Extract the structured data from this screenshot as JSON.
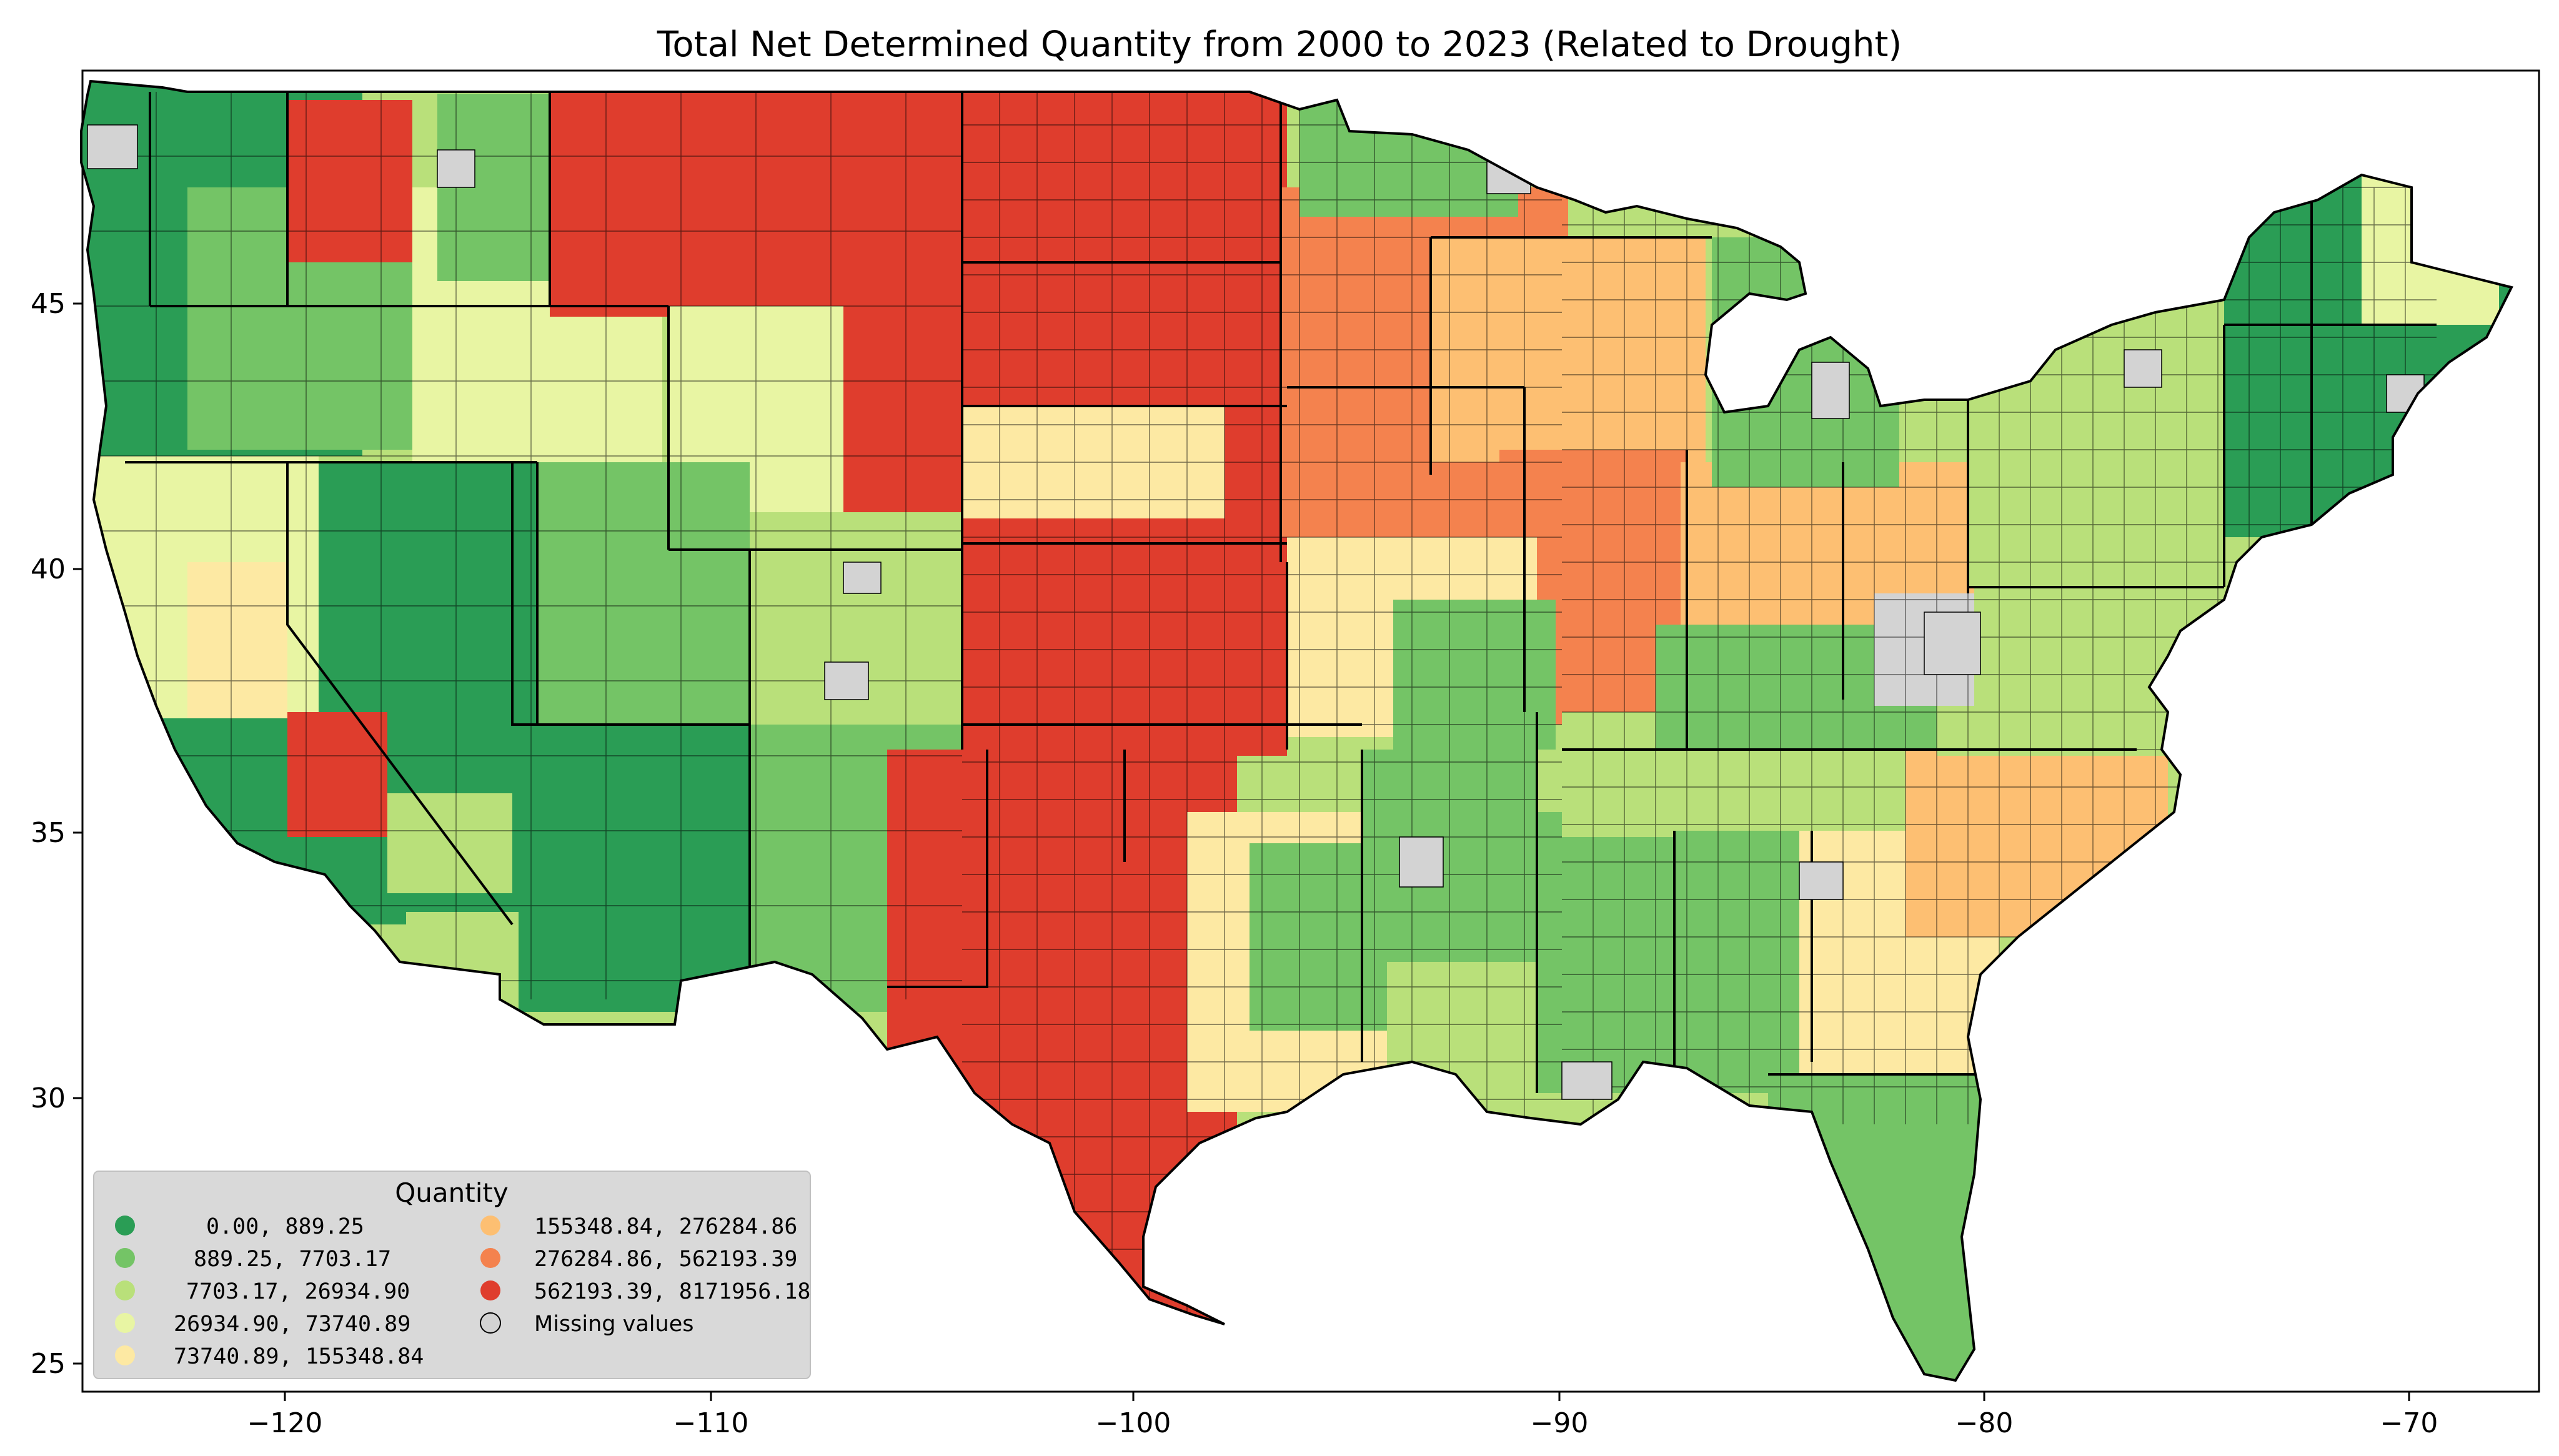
{
  "title": "Total Net Determined Quantity from 2000 to 2023 (Related to Drought)",
  "x_ticks": [
    "−120",
    "−110",
    "−100",
    "−90",
    "−80",
    "−70"
  ],
  "y_ticks": [
    "45",
    "40",
    "35",
    "30",
    "25"
  ],
  "legend": {
    "title": "Quantity",
    "items": [
      {
        "label": "0.00,     889.25",
        "color": "#2a9d55"
      },
      {
        "label": "889.25,    7703.17",
        "color": "#74c466"
      },
      {
        "label": "7703.17,   26934.90",
        "color": "#b9e07a"
      },
      {
        "label": "26934.90,   73740.89",
        "color": "#e8f5a3"
      },
      {
        "label": "73740.89,  155348.84",
        "color": "#fde9a3"
      },
      {
        "label": "155348.84,  276284.86",
        "color": "#fdbf72"
      },
      {
        "label": "276284.86,  562193.39",
        "color": "#f4824e"
      },
      {
        "label": "562193.39, 8171956.18",
        "color": "#df3d2d"
      },
      {
        "label": "Missing values",
        "color": "#d3d3d3"
      }
    ]
  },
  "colors": {
    "missing": "#d3d3d3",
    "border": "#000000",
    "legend_bg": "#d8d8d8"
  }
}
